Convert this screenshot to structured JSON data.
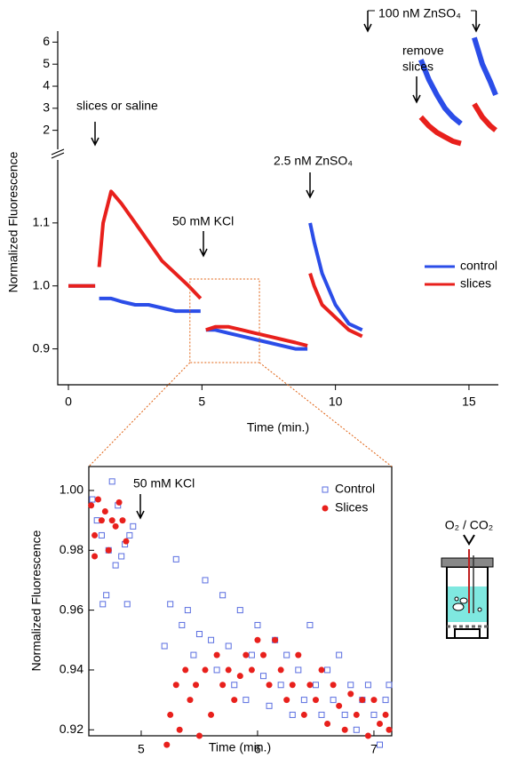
{
  "chart_data": [
    {
      "type": "line",
      "x_label": "Time (min.)",
      "y_label": "Normalized  Fluorescence",
      "xlim": [
        -0.4,
        16.1
      ],
      "xticks": [
        0,
        5,
        10,
        15
      ],
      "ylim": [
        0.843,
        1.2
      ],
      "yticks": [
        0.9,
        {
          "value": 1,
          "label": "1.0"
        },
        1.1
      ],
      "upper_ylim": [
        1.3,
        6.5
      ],
      "upper_yticks": [
        2,
        3,
        4,
        5,
        6
      ],
      "x": [
        0,
        0.5,
        1.0,
        1.08,
        1.15,
        1.3,
        1.6,
        2,
        2.5,
        3,
        3.5,
        4,
        4.5,
        4.95,
        5.05,
        5.15,
        5.5,
        6,
        6.5,
        7,
        7.5,
        8,
        8.5,
        8.95,
        9.0,
        9.05,
        9.2,
        9.5,
        10,
        10.5,
        11
      ],
      "series": [
        {
          "name": "control",
          "color": "#2b4de8",
          "values": [
            1.0,
            1.0,
            1.0,
            null,
            0.98,
            0.98,
            0.98,
            0.975,
            0.97,
            0.97,
            0.965,
            0.96,
            0.96,
            0.96,
            null,
            0.93,
            0.93,
            0.925,
            0.92,
            0.915,
            0.91,
            0.905,
            0.9,
            0.9,
            null,
            1.1,
            1.07,
            1.02,
            0.97,
            0.94,
            0.93
          ]
        },
        {
          "name": "slices",
          "color": "#e8201c",
          "values": [
            1.0,
            1.0,
            1.0,
            null,
            1.03,
            1.1,
            1.15,
            1.13,
            1.1,
            1.07,
            1.04,
            1.02,
            1.0,
            0.98,
            null,
            0.93,
            0.935,
            0.935,
            0.93,
            0.925,
            0.92,
            0.915,
            0.91,
            0.905,
            null,
            1.02,
            1.0,
            0.97,
            0.95,
            0.93,
            0.92
          ]
        }
      ],
      "upper_x": [
        13.2,
        13.5,
        13.8,
        14.1,
        14.4,
        14.7,
        15.1,
        15.2,
        15.5,
        15.8,
        16
      ],
      "upper_series": [
        {
          "color": "#2b4de8",
          "values": [
            5.2,
            4.3,
            3.6,
            3.0,
            2.6,
            2.3,
            null,
            6.2,
            5.0,
            4.2,
            3.6
          ]
        },
        {
          "color": "#e8201c",
          "values": [
            2.6,
            2.2,
            1.9,
            1.7,
            1.5,
            1.4,
            null,
            3.2,
            2.6,
            2.2,
            2.0
          ]
        }
      ],
      "annotations": [
        "slices or saline",
        "50 mM KCl",
        "2.5 nM ZnSO₄",
        "100 nM ZnSO₄",
        "remove",
        "slices"
      ],
      "legend": "right"
    },
    {
      "type": "scatter",
      "x_label": "Time (min.)",
      "y_label": "Normalized  Fluorescence",
      "xlim": [
        4.55,
        7.153
      ],
      "xticks": [
        5,
        6,
        7
      ],
      "ylim": [
        0.918,
        1.008
      ],
      "yticks": [
        0.92,
        0.94,
        0.96,
        0.98,
        {
          "value": 1,
          "label": "1.00"
        }
      ],
      "series": [
        {
          "name": "Control",
          "color": "#5a6ee0",
          "marker": "square",
          "x": [
            4.58,
            4.62,
            4.66,
            4.7,
            4.72,
            4.75,
            4.78,
            4.8,
            4.83,
            4.86,
            4.9,
            4.93,
            4.67,
            4.88,
            5.2,
            5.25,
            5.3,
            5.35,
            5.4,
            5.45,
            5.5,
            5.55,
            5.6,
            5.65,
            5.7,
            5.75,
            5.8,
            5.85,
            5.9,
            5.95,
            6.0,
            6.05,
            6.1,
            6.15,
            6.2,
            6.25,
            6.3,
            6.35,
            6.4,
            6.45,
            6.5,
            6.55,
            6.6,
            6.65,
            6.7,
            6.75,
            6.8,
            6.85,
            6.9,
            6.95,
            7.0,
            7.05,
            7.1,
            7.13
          ],
          "values": [
            0.997,
            0.99,
            0.985,
            0.965,
            0.98,
            1.003,
            0.975,
            0.995,
            0.978,
            0.982,
            0.985,
            0.988,
            0.962,
            0.962,
            0.948,
            0.962,
            0.977,
            0.955,
            0.96,
            0.945,
            0.952,
            0.97,
            0.95,
            0.94,
            0.965,
            0.948,
            0.935,
            0.96,
            0.93,
            0.945,
            0.955,
            0.938,
            0.928,
            0.95,
            0.935,
            0.945,
            0.925,
            0.94,
            0.93,
            0.955,
            0.935,
            0.925,
            0.94,
            0.93,
            0.945,
            0.925,
            0.935,
            0.92,
            0.93,
            0.935,
            0.925,
            0.915,
            0.93,
            0.935
          ]
        },
        {
          "name": "Slices",
          "color": "#e8201c",
          "marker": "circle",
          "x": [
            4.57,
            4.6,
            4.63,
            4.66,
            4.69,
            4.72,
            4.75,
            4.78,
            4.81,
            4.84,
            4.87,
            4.6,
            5.22,
            5.25,
            5.3,
            5.33,
            5.38,
            5.42,
            5.47,
            5.5,
            5.55,
            5.6,
            5.65,
            5.7,
            5.75,
            5.8,
            5.85,
            5.9,
            5.95,
            6.0,
            6.05,
            6.1,
            6.15,
            6.2,
            6.25,
            6.3,
            6.35,
            6.4,
            6.45,
            6.5,
            6.55,
            6.6,
            6.65,
            6.7,
            6.75,
            6.8,
            6.85,
            6.9,
            6.95,
            7.0,
            7.05,
            7.1,
            7.13
          ],
          "values": [
            0.995,
            0.985,
            0.997,
            0.99,
            0.993,
            0.98,
            0.99,
            0.988,
            0.996,
            0.99,
            0.983,
            0.978,
            0.915,
            0.925,
            0.935,
            0.92,
            0.94,
            0.93,
            0.935,
            0.918,
            0.94,
            0.925,
            0.945,
            0.935,
            0.94,
            0.93,
            0.938,
            0.945,
            0.94,
            0.95,
            0.945,
            0.935,
            0.95,
            0.94,
            0.93,
            0.935,
            0.945,
            0.925,
            0.935,
            0.93,
            0.94,
            0.922,
            0.935,
            0.928,
            0.92,
            0.932,
            0.925,
            0.93,
            0.918,
            0.93,
            0.922,
            0.925,
            0.92
          ]
        }
      ],
      "annotations": [
        "50 mM KCl"
      ],
      "legend": "upper right"
    }
  ],
  "diagram": {
    "label": "O₂ / CO₂"
  }
}
